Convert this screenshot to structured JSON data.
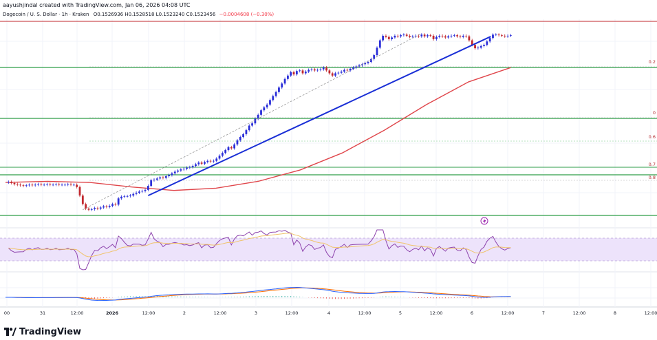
{
  "header": {
    "attribution": "aayushjindal created with TradingView.com, Jan 06, 2026 04:08 UTC",
    "symbol": "Dogecoin / U. S. Dollar · 1h · Kraken",
    "ohlc": "O0.1526936 H0.1528518 L0.1523240 C0.1523456",
    "change": "−0.0004608 (−0.30%)"
  },
  "brand": {
    "name": "TradingView",
    "logo_icon": "tradingview-logo-icon"
  },
  "fib_labels": [
    "0.2",
    "0",
    "0.6",
    "0.7",
    "0.8"
  ],
  "colors": {
    "up": "#2a2ed8",
    "down": "#c1272d",
    "trendline": "#1a2fd6",
    "ma": "#e0474c",
    "green": "#2e9e48",
    "rsi_band": "#ede3fb",
    "rsi_line": "#8e44ad",
    "rsi_signal": "#f0c36a",
    "macd_line": "#2962ff",
    "signal_line": "#ff6d00",
    "hist_pos": "#26a69a",
    "hist_neg": "#ef5350"
  },
  "chart_data": {
    "type": "candlestick",
    "x_axis": {
      "ticks": [
        "00",
        "31",
        "12:00",
        "2026",
        "12:00",
        "2",
        "12:00",
        "3",
        "12:00",
        "4",
        "12:00",
        "5",
        "12:00",
        "6",
        "12:00",
        "7",
        "12:00",
        "8",
        "12:00"
      ]
    },
    "price_path": [
      0.1408,
      0.1409,
      0.1407,
      0.1405,
      0.1404,
      0.1403,
      0.1402,
      0.1403,
      0.1404,
      0.1403,
      0.1404,
      0.1405,
      0.1404,
      0.1404,
      0.1405,
      0.1404,
      0.1404,
      0.1405,
      0.1404,
      0.1404,
      0.1404,
      0.1405,
      0.1404,
      0.1404,
      0.14,
      0.1385,
      0.137,
      0.1362,
      0.136,
      0.1361,
      0.1363,
      0.1362,
      0.1364,
      0.1366,
      0.1365,
      0.1367,
      0.137,
      0.1369,
      0.138,
      0.1383,
      0.1384,
      0.1384,
      0.1385,
      0.1388,
      0.139,
      0.1392,
      0.1393,
      0.1395,
      0.1402,
      0.1412,
      0.1413,
      0.1415,
      0.1417,
      0.1416,
      0.1419,
      0.1421,
      0.1424,
      0.1427,
      0.1429,
      0.1431,
      0.1432,
      0.1434,
      0.1435,
      0.1437,
      0.144,
      0.1443,
      0.1441,
      0.1444,
      0.1446,
      0.1445,
      0.1446,
      0.145,
      0.1455,
      0.146,
      0.1465,
      0.147,
      0.1468,
      0.1475,
      0.1482,
      0.1488,
      0.1493,
      0.15,
      0.1508,
      0.1512,
      0.152,
      0.1527,
      0.1535,
      0.154,
      0.1545,
      0.1553,
      0.156,
      0.1567,
      0.1575,
      0.1582,
      0.159,
      0.1596,
      0.1602,
      0.1598,
      0.1604,
      0.1605,
      0.16,
      0.1603,
      0.1606,
      0.1607,
      0.1605,
      0.1606,
      0.1607,
      0.161,
      0.1605,
      0.16,
      0.1596,
      0.16,
      0.1601,
      0.1603,
      0.1606,
      0.1605,
      0.1608,
      0.161,
      0.1612,
      0.1614,
      0.1616,
      0.1618,
      0.162,
      0.1625,
      0.1632,
      0.1645,
      0.1658,
      0.1666,
      0.1664,
      0.166,
      0.1663,
      0.1666,
      0.1665,
      0.1667,
      0.1668,
      0.1666,
      0.1664,
      0.1665,
      0.1666,
      0.1665,
      0.1668,
      0.1665,
      0.1667,
      0.1666,
      0.166,
      0.1664,
      0.1666,
      0.1665,
      0.1663,
      0.1665,
      0.1666,
      0.1667,
      0.1665,
      0.1664,
      0.1666,
      0.1665,
      0.1658,
      0.165,
      0.1644,
      0.1645,
      0.1648,
      0.165,
      0.1656,
      0.1662,
      0.1668,
      0.1668,
      0.1667,
      0.1666,
      0.1665,
      0.1666,
      0.1667
    ],
    "trendline": {
      "from": [
        0.1385,
        48
      ],
      "to": [
        0.1655,
        154
      ]
    },
    "dashed_trend": {
      "from": [
        0.136,
        26
      ],
      "to": [
        0.167,
        140
      ]
    },
    "moving_average": [
      0.1408,
      0.141,
      0.1408,
      0.14,
      0.1394,
      0.1398,
      0.141,
      0.143,
      0.146,
      0.15,
      0.1545,
      0.1585,
      0.161
    ]
  }
}
